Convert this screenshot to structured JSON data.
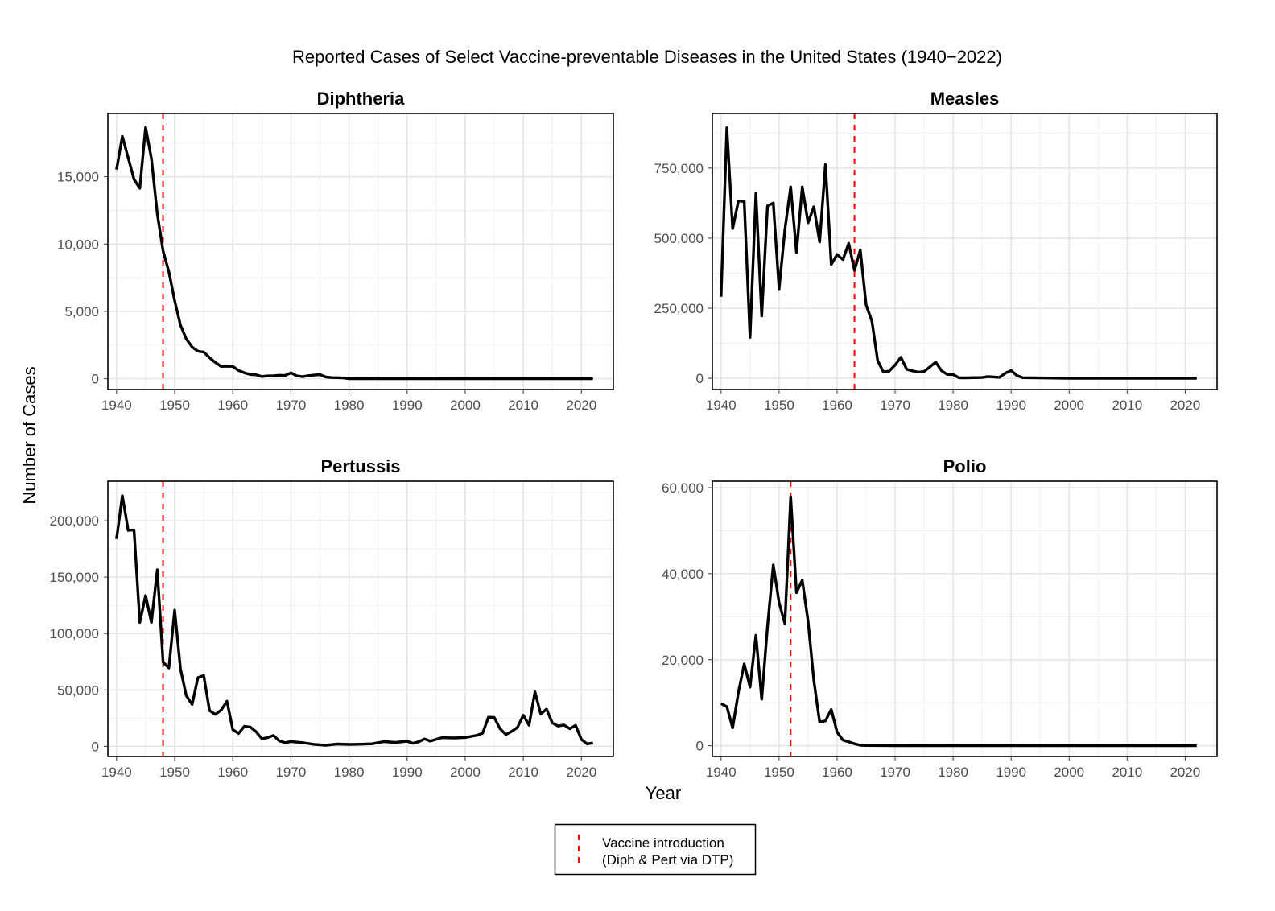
{
  "chart_data": {
    "type": "line",
    "title": "Reported Cases of Select Vaccine-preventable Diseases in the United States (1940−2022)",
    "xlabel": "Year",
    "ylabel": "Number of Cases",
    "grid": true,
    "legend": {
      "position": "bottom",
      "entries": [
        "Vaccine introduction",
        "(Diph & Pert via DTP)"
      ]
    },
    "x_ticks": [
      "1940",
      "1950",
      "1960",
      "1970",
      "1980",
      "1990",
      "2000",
      "2010",
      "2020"
    ],
    "xlim": [
      1938.5,
      2025.5
    ],
    "panels": [
      {
        "name": "Diphtheria",
        "vaccine_year": 1948,
        "ylim": [
          -800,
          19700
        ],
        "y_ticks": [
          0,
          5000,
          10000,
          15000
        ],
        "y_tick_labels": [
          "0",
          "5,000",
          "10,000",
          "15,000"
        ],
        "x": [
          1940,
          1941,
          1942,
          1943,
          1944,
          1945,
          1946,
          1947,
          1948,
          1949,
          1950,
          1951,
          1952,
          1953,
          1954,
          1955,
          1956,
          1957,
          1958,
          1959,
          1960,
          1961,
          1962,
          1963,
          1964,
          1965,
          1966,
          1967,
          1968,
          1969,
          1970,
          1971,
          1972,
          1973,
          1974,
          1975,
          1976,
          1977,
          1978,
          1979,
          1980,
          1990,
          2000,
          2010,
          2022
        ],
        "values": [
          15536,
          18003,
          16397,
          14811,
          14150,
          18675,
          16354,
          12262,
          9493,
          7941,
          5796,
          3983,
          2960,
          2355,
          2041,
          1984,
          1568,
          1211,
          918,
          934,
          918,
          617,
          444,
          314,
          293,
          164,
          209,
          219,
          260,
          241,
          435,
          215,
          152,
          228,
          272,
          307,
          128,
          84,
          76,
          59,
          3,
          4,
          1,
          0,
          0
        ]
      },
      {
        "name": "Measles",
        "vaccine_year": 1963,
        "ylim": [
          -40000,
          945000
        ],
        "y_ticks": [
          0,
          250000,
          500000,
          750000
        ],
        "y_tick_labels": [
          "0",
          "250,000",
          "500,000",
          "750,000"
        ],
        "x": [
          1940,
          1941,
          1942,
          1943,
          1944,
          1945,
          1946,
          1947,
          1948,
          1949,
          1950,
          1951,
          1952,
          1953,
          1954,
          1955,
          1956,
          1957,
          1958,
          1959,
          1960,
          1961,
          1962,
          1963,
          1964,
          1965,
          1966,
          1967,
          1968,
          1969,
          1970,
          1971,
          1972,
          1973,
          1974,
          1975,
          1976,
          1977,
          1978,
          1979,
          1980,
          1981,
          1982,
          1985,
          1986,
          1988,
          1989,
          1990,
          1991,
          1992,
          2000,
          2022
        ],
        "values": [
          291162,
          894134,
          534064,
          633461,
          630635,
          146013,
          659843,
          222375,
          615104,
          625281,
          319124,
          530118,
          683077,
          449146,
          682720,
          555156,
          611936,
          486799,
          763094,
          406162,
          441703,
          423919,
          481530,
          385156,
          458083,
          261904,
          204136,
          62705,
          22231,
          25826,
          47351,
          75290,
          32275,
          26690,
          22094,
          24374,
          41126,
          57345,
          26871,
          13597,
          13506,
          2000,
          1500,
          2822,
          6282,
          3396,
          18193,
          27786,
          9643,
          2237,
          86,
          121
        ]
      },
      {
        "name": "Pertussis",
        "vaccine_year": 1948,
        "ylim": [
          -9000,
          235000
        ],
        "y_ticks": [
          0,
          50000,
          100000,
          150000,
          200000
        ],
        "y_tick_labels": [
          "0",
          "50,000",
          "100,000",
          "150,000",
          "200,000"
        ],
        "x": [
          1940,
          1941,
          1942,
          1943,
          1944,
          1945,
          1946,
          1947,
          1948,
          1949,
          1950,
          1951,
          1952,
          1953,
          1954,
          1955,
          1956,
          1957,
          1958,
          1959,
          1960,
          1961,
          1962,
          1963,
          1964,
          1965,
          1966,
          1967,
          1968,
          1969,
          1970,
          1972,
          1974,
          1976,
          1978,
          1980,
          1982,
          1984,
          1986,
          1988,
          1990,
          1991,
          1992,
          1993,
          1994,
          1996,
          1998,
          2000,
          2002,
          2003,
          2004,
          2005,
          2006,
          2007,
          2008,
          2009,
          2010,
          2011,
          2012,
          2013,
          2014,
          2015,
          2016,
          2017,
          2018,
          2019,
          2020,
          2021,
          2022
        ],
        "values": [
          183866,
          222202,
          191383,
          191890,
          109873,
          133792,
          109860,
          156517,
          74715,
          69479,
          120718,
          68687,
          45030,
          37129,
          60886,
          62786,
          31732,
          28295,
          32148,
          40005,
          14809,
          11468,
          17749,
          17135,
          13005,
          6799,
          7717,
          9718,
          4810,
          3285,
          4249,
          3287,
          1759,
          1010,
          2063,
          1730,
          1895,
          2276,
          4195,
          3450,
          4570,
          2719,
          4083,
          6586,
          4617,
          7796,
          7405,
          7867,
          9771,
          11647,
          25827,
          25616,
          15632,
          10454,
          13278,
          16858,
          27550,
          18719,
          48277,
          28639,
          32971,
          20762,
          17972,
          18975,
          15609,
          18617,
          6124,
          2116,
          3044
        ]
      },
      {
        "name": "Polio",
        "vaccine_year": 1952,
        "ylim": [
          -2500,
          61500
        ],
        "y_ticks": [
          0,
          20000,
          40000,
          60000
        ],
        "y_tick_labels": [
          "0",
          "20,000",
          "40,000",
          "60,000"
        ],
        "x": [
          1940,
          1941,
          1942,
          1943,
          1944,
          1945,
          1946,
          1947,
          1948,
          1949,
          1950,
          1951,
          1952,
          1953,
          1954,
          1955,
          1956,
          1957,
          1958,
          1959,
          1960,
          1961,
          1962,
          1963,
          1964,
          1965,
          1970,
          1980,
          1990,
          2000,
          2022
        ],
        "values": [
          9804,
          9086,
          4167,
          12450,
          19029,
          13624,
          25698,
          10827,
          27726,
          42033,
          33300,
          28386,
          57879,
          35592,
          38476,
          28985,
          15140,
          5485,
          5787,
          8425,
          3190,
          1312,
          910,
          449,
          122,
          72,
          33,
          9,
          6,
          0,
          0
        ]
      }
    ]
  }
}
